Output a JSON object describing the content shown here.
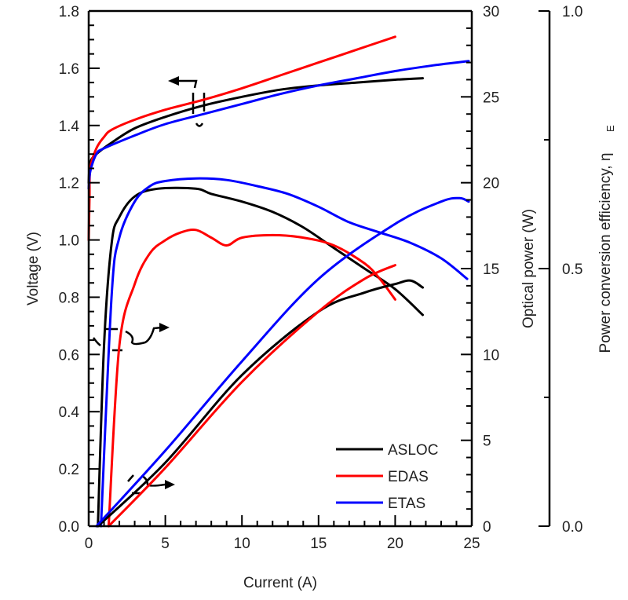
{
  "chart_data": {
    "type": "line",
    "title": "",
    "xlabel": "Current (A)",
    "xlim": [
      0,
      25
    ],
    "x_ticks": [
      "0",
      "5",
      "10",
      "15",
      "20",
      "25"
    ],
    "axes": {
      "voltage": {
        "label": "Voltage (V)",
        "position": "left",
        "ylim": [
          0,
          1.8
        ],
        "ticks": [
          "0.0",
          "0.2",
          "0.4",
          "0.6",
          "0.8",
          "1.0",
          "1.2",
          "1.4",
          "1.6",
          "1.8"
        ]
      },
      "power": {
        "label": "Optical power (W)",
        "position": "right",
        "ylim": [
          0,
          30
        ],
        "ticks": [
          "0",
          "5",
          "10",
          "15",
          "20",
          "25",
          "30"
        ]
      },
      "efficiency": {
        "label": "Power conversion efficiency, η",
        "label_subscript": "E",
        "position": "far-right",
        "ylim": [
          0,
          1.0
        ],
        "ticks": [
          "0.0",
          "0.5",
          "1.0"
        ]
      }
    },
    "legend": {
      "placement": "bottom-right",
      "entries": [
        {
          "name": "ASLOC",
          "color": "#000000"
        },
        {
          "name": "EDAS",
          "color": "#ff0000"
        },
        {
          "name": "ETAS",
          "color": "#0000ff"
        }
      ]
    },
    "series": [
      {
        "name": "ASLOC",
        "quantity": "voltage",
        "color": "#000000",
        "x": [
          0.0,
          0.1,
          0.5,
          1.5,
          3,
          5,
          7.5,
          10,
          12.5,
          15,
          17.5,
          20,
          21.8
        ],
        "y": [
          1.2,
          1.27,
          1.3,
          1.34,
          1.39,
          1.43,
          1.47,
          1.5,
          1.525,
          1.54,
          1.55,
          1.56,
          1.565
        ]
      },
      {
        "name": "EDAS",
        "quantity": "voltage",
        "color": "#ff0000",
        "x": [
          0.0,
          0.05,
          0.1,
          0.5,
          1.0,
          1.5,
          3,
          5,
          7.5,
          10,
          12.5,
          15,
          17.5,
          20
        ],
        "y": [
          1.0,
          1.15,
          1.25,
          1.32,
          1.36,
          1.385,
          1.42,
          1.455,
          1.49,
          1.53,
          1.575,
          1.62,
          1.665,
          1.71
        ]
      },
      {
        "name": "ETAS",
        "quantity": "voltage",
        "color": "#0000ff",
        "x": [
          0.0,
          0.1,
          0.5,
          1.0,
          3,
          5,
          7.5,
          10,
          12.5,
          15,
          17.5,
          20,
          22.5,
          24.8
        ],
        "y": [
          1.18,
          1.24,
          1.3,
          1.32,
          1.365,
          1.405,
          1.44,
          1.475,
          1.51,
          1.54,
          1.565,
          1.59,
          1.61,
          1.625
        ]
      },
      {
        "name": "ASLOC",
        "quantity": "efficiency",
        "color": "#000000",
        "x": [
          0.6,
          1.0,
          1.5,
          2.0,
          3.0,
          4.5,
          7.0,
          8.0,
          10,
          12,
          14,
          16,
          18,
          20,
          21.8
        ],
        "y": [
          0.0,
          0.35,
          0.55,
          0.6,
          0.64,
          0.655,
          0.655,
          0.645,
          0.63,
          0.61,
          0.58,
          0.54,
          0.5,
          0.46,
          0.41
        ]
      },
      {
        "name": "EDAS",
        "quantity": "efficiency",
        "color": "#ff0000",
        "x": [
          1.3,
          2.0,
          3.0,
          4.0,
          5.0,
          6.0,
          7.0,
          8.0,
          9.0,
          10,
          12,
          14,
          16,
          18,
          19,
          20
        ],
        "y": [
          0.0,
          0.35,
          0.47,
          0.53,
          0.555,
          0.57,
          0.575,
          0.56,
          0.545,
          0.56,
          0.565,
          0.56,
          0.545,
          0.51,
          0.48,
          0.44
        ]
      },
      {
        "name": "ETAS",
        "quantity": "efficiency",
        "color": "#0000ff",
        "x": [
          0.8,
          1.5,
          2.0,
          3.0,
          4.0,
          5.0,
          7.0,
          9.0,
          11,
          13,
          15,
          17,
          19,
          21,
          23,
          24.7
        ],
        "y": [
          0.0,
          0.45,
          0.56,
          0.63,
          0.66,
          0.67,
          0.675,
          0.672,
          0.66,
          0.645,
          0.62,
          0.59,
          0.57,
          0.55,
          0.52,
          0.48
        ]
      },
      {
        "name": "ASLOC",
        "quantity": "power",
        "color": "#000000",
        "x": [
          0.6,
          5,
          10,
          15,
          18,
          20,
          21,
          21.8
        ],
        "y": [
          0.0,
          3.7,
          8.8,
          12.5,
          13.6,
          14.1,
          14.3,
          13.9
        ]
      },
      {
        "name": "EDAS",
        "quantity": "power",
        "color": "#ff0000",
        "x": [
          1.3,
          5,
          10,
          15,
          18,
          20
        ],
        "y": [
          0.0,
          3.4,
          8.4,
          12.5,
          14.4,
          15.2
        ]
      },
      {
        "name": "ETAS",
        "quantity": "power",
        "color": "#0000ff",
        "x": [
          0.5,
          5,
          10,
          15,
          20,
          23,
          24.2,
          24.8
        ],
        "y": [
          0.0,
          4.4,
          9.6,
          14.4,
          17.6,
          18.9,
          19.1,
          18.9
        ]
      }
    ]
  }
}
